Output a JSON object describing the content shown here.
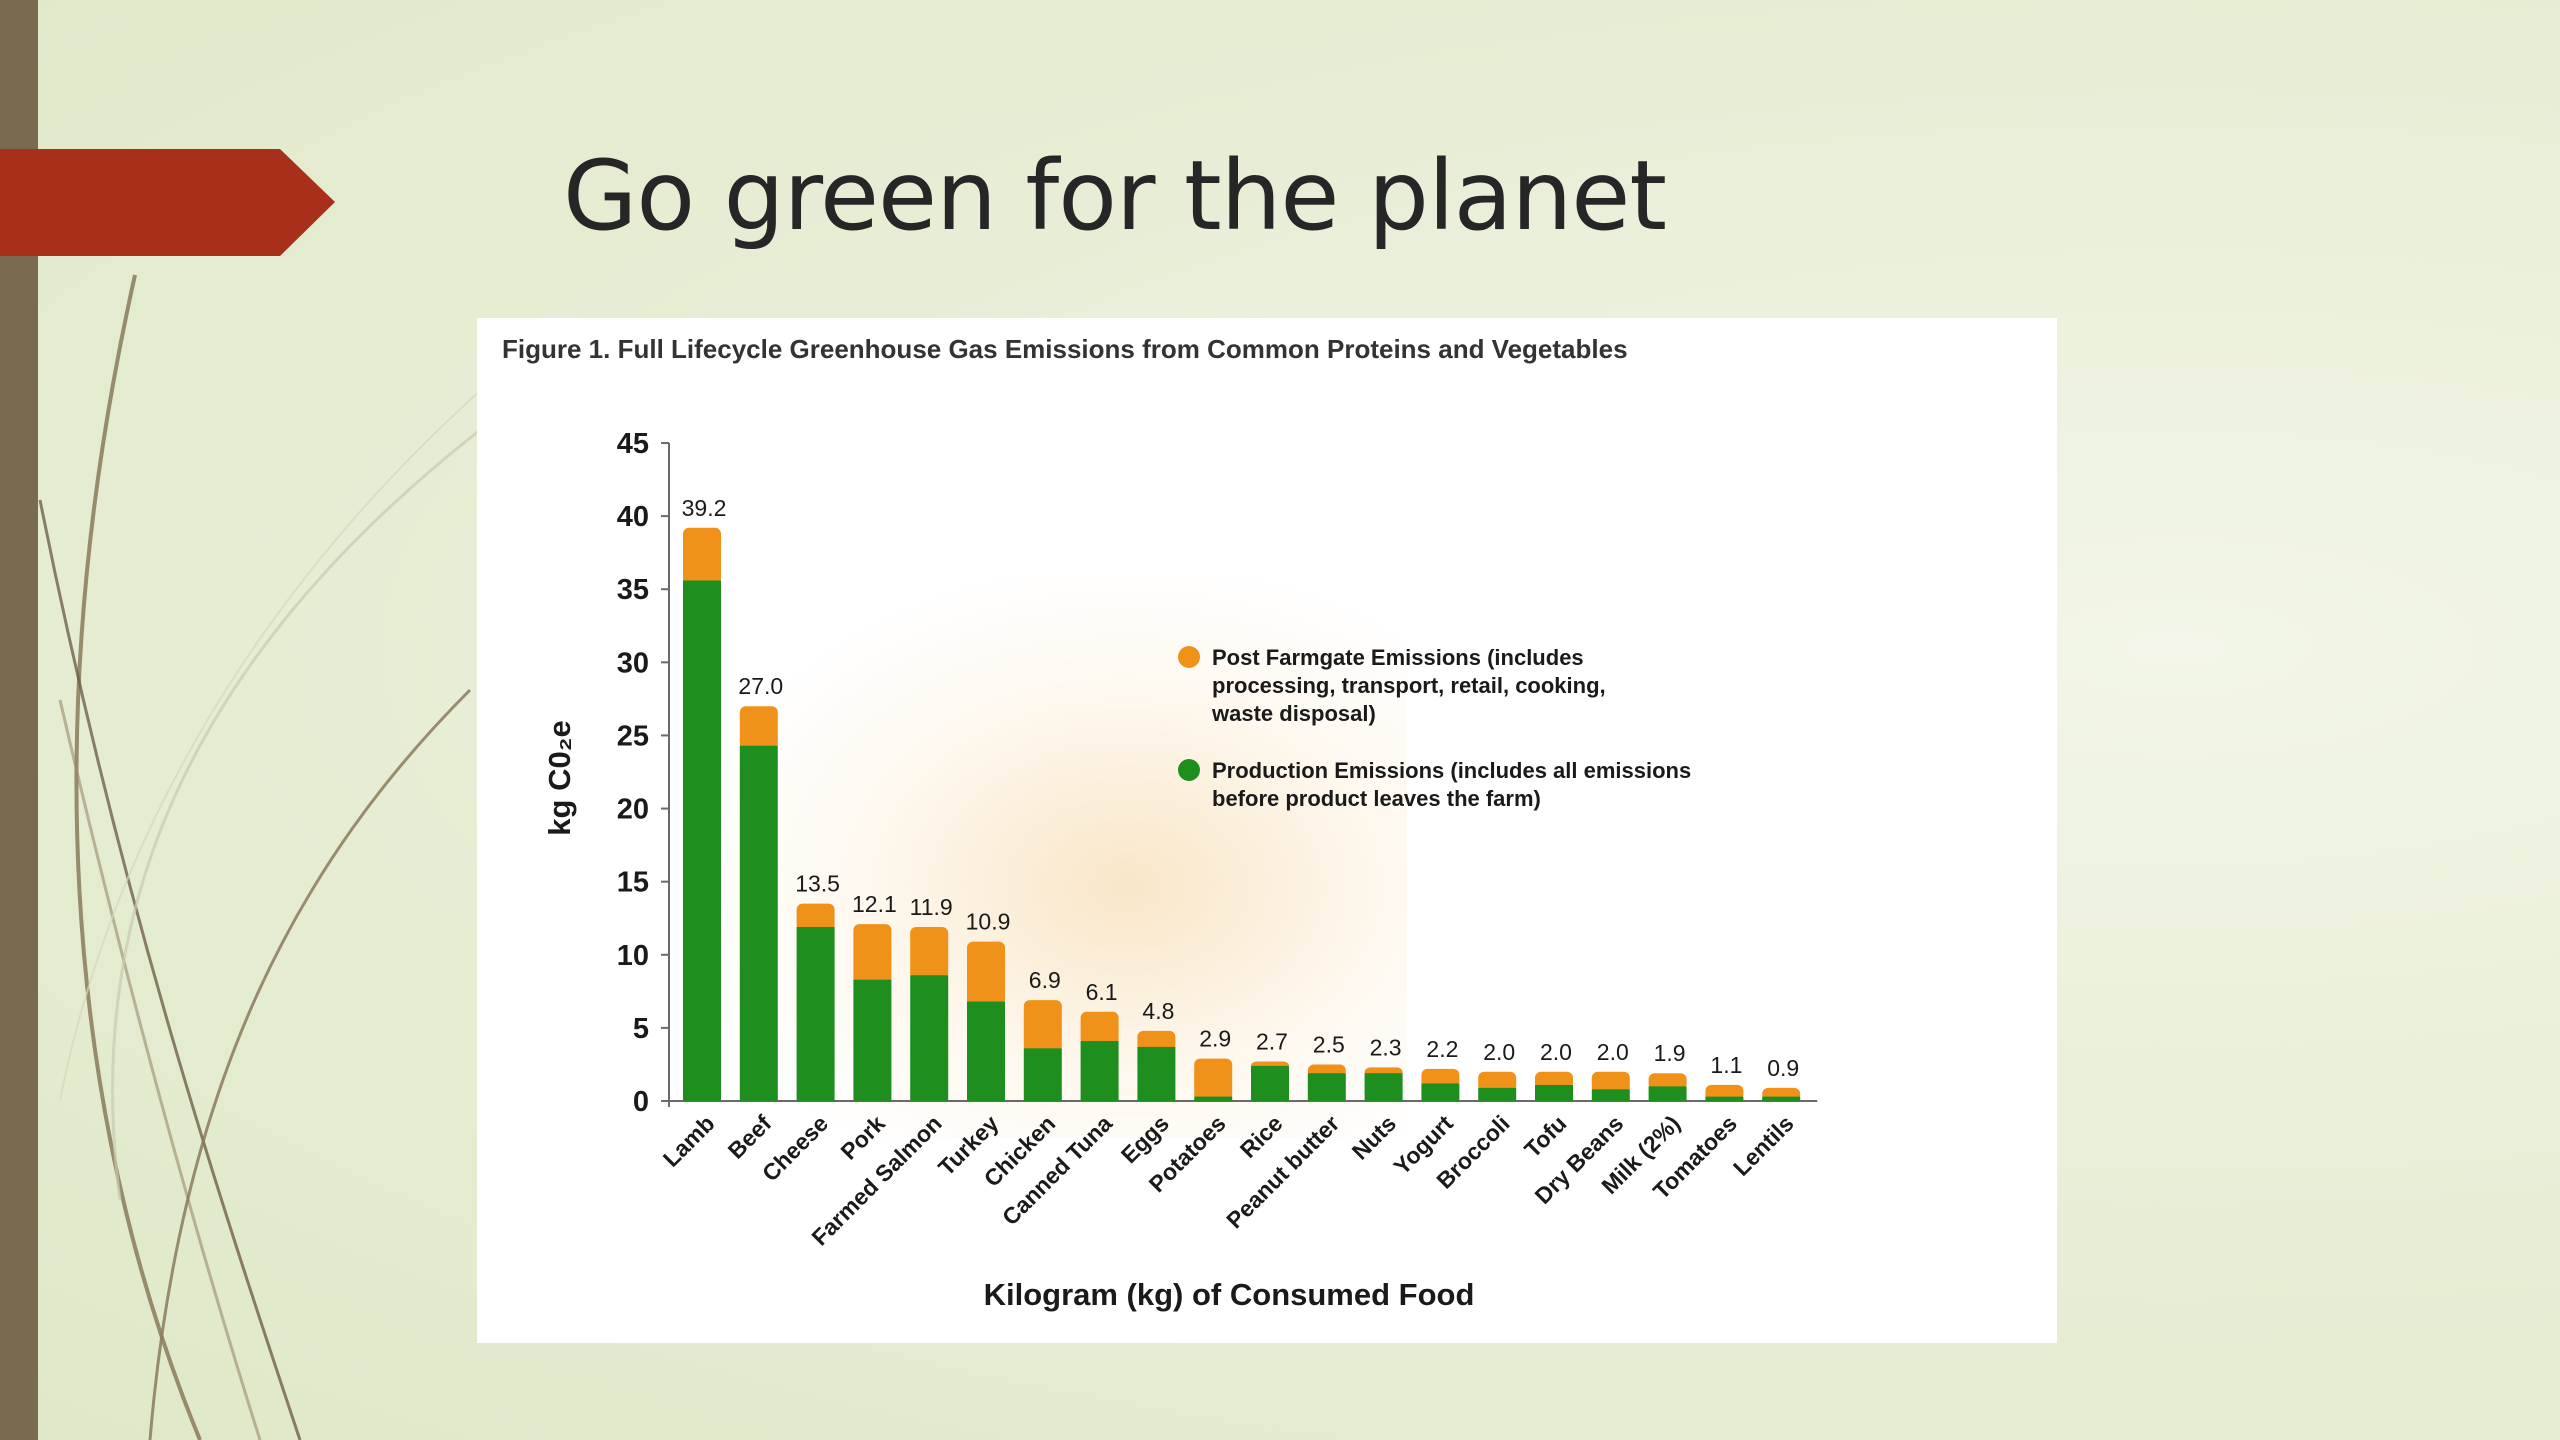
{
  "slide": {
    "title": "Go green for the planet",
    "accent_color": "#a8301a",
    "sidebar_color": "#7a6a50"
  },
  "figure": {
    "caption": "Figure 1. Full Lifecycle Greenhouse Gas Emissions from Common Proteins and Vegetables"
  },
  "chart_data": {
    "type": "bar",
    "stacked": true,
    "ylabel": "kg C0₂e",
    "xlabel": "Kilogram (kg) of Consumed Food",
    "ylim": [
      0,
      45
    ],
    "yticks": [
      0,
      5,
      10,
      15,
      20,
      25,
      30,
      35,
      40,
      45
    ],
    "categories": [
      "Lamb",
      "Beef",
      "Cheese",
      "Pork",
      "Farmed Salmon",
      "Turkey",
      "Chicken",
      "Canned Tuna",
      "Eggs",
      "Potatoes",
      "Rice",
      "Peanut butter",
      "Nuts",
      "Yogurt",
      "Broccoli",
      "Tofu",
      "Dry Beans",
      "Milk (2%)",
      "Tomatoes",
      "Lentils"
    ],
    "series": [
      {
        "name": "Production Emissions (includes all emissions before product leaves the farm)",
        "color": "#1e8f1e",
        "values": [
          35.6,
          24.3,
          11.9,
          8.3,
          8.6,
          6.8,
          3.6,
          4.1,
          3.7,
          0.3,
          2.4,
          1.9,
          1.9,
          1.2,
          0.9,
          1.1,
          0.8,
          1.0,
          0.3,
          0.3
        ]
      },
      {
        "name": "Post Farmgate Emissions (includes processing, transport, retail, cooking, waste disposal)",
        "color": "#f0921a",
        "values": [
          3.6,
          2.7,
          1.6,
          3.8,
          3.3,
          4.1,
          3.3,
          2.0,
          1.1,
          2.6,
          0.3,
          0.6,
          0.4,
          1.0,
          1.1,
          0.9,
          1.2,
          0.9,
          0.8,
          0.6
        ]
      }
    ],
    "totals": [
      "39.2",
      "27.0",
      "13.5",
      "12.1",
      "11.9",
      "10.9",
      "6.9",
      "6.1",
      "4.8",
      "2.9",
      "2.7",
      "2.5",
      "2.3",
      "2.2",
      "2.0",
      "2.0",
      "2.0",
      "1.9",
      "1.1",
      "0.9"
    ],
    "legend": [
      {
        "lines": [
          "Post Farmgate Emissions (includes",
          "processing, transport, retail, cooking,",
          "waste disposal)"
        ],
        "color": "#f0921a"
      },
      {
        "lines": [
          "Production Emissions (includes all emissions",
          "before product leaves the farm)"
        ],
        "color": "#1e8f1e"
      }
    ],
    "legend_position": "upper-right",
    "grid": false
  }
}
